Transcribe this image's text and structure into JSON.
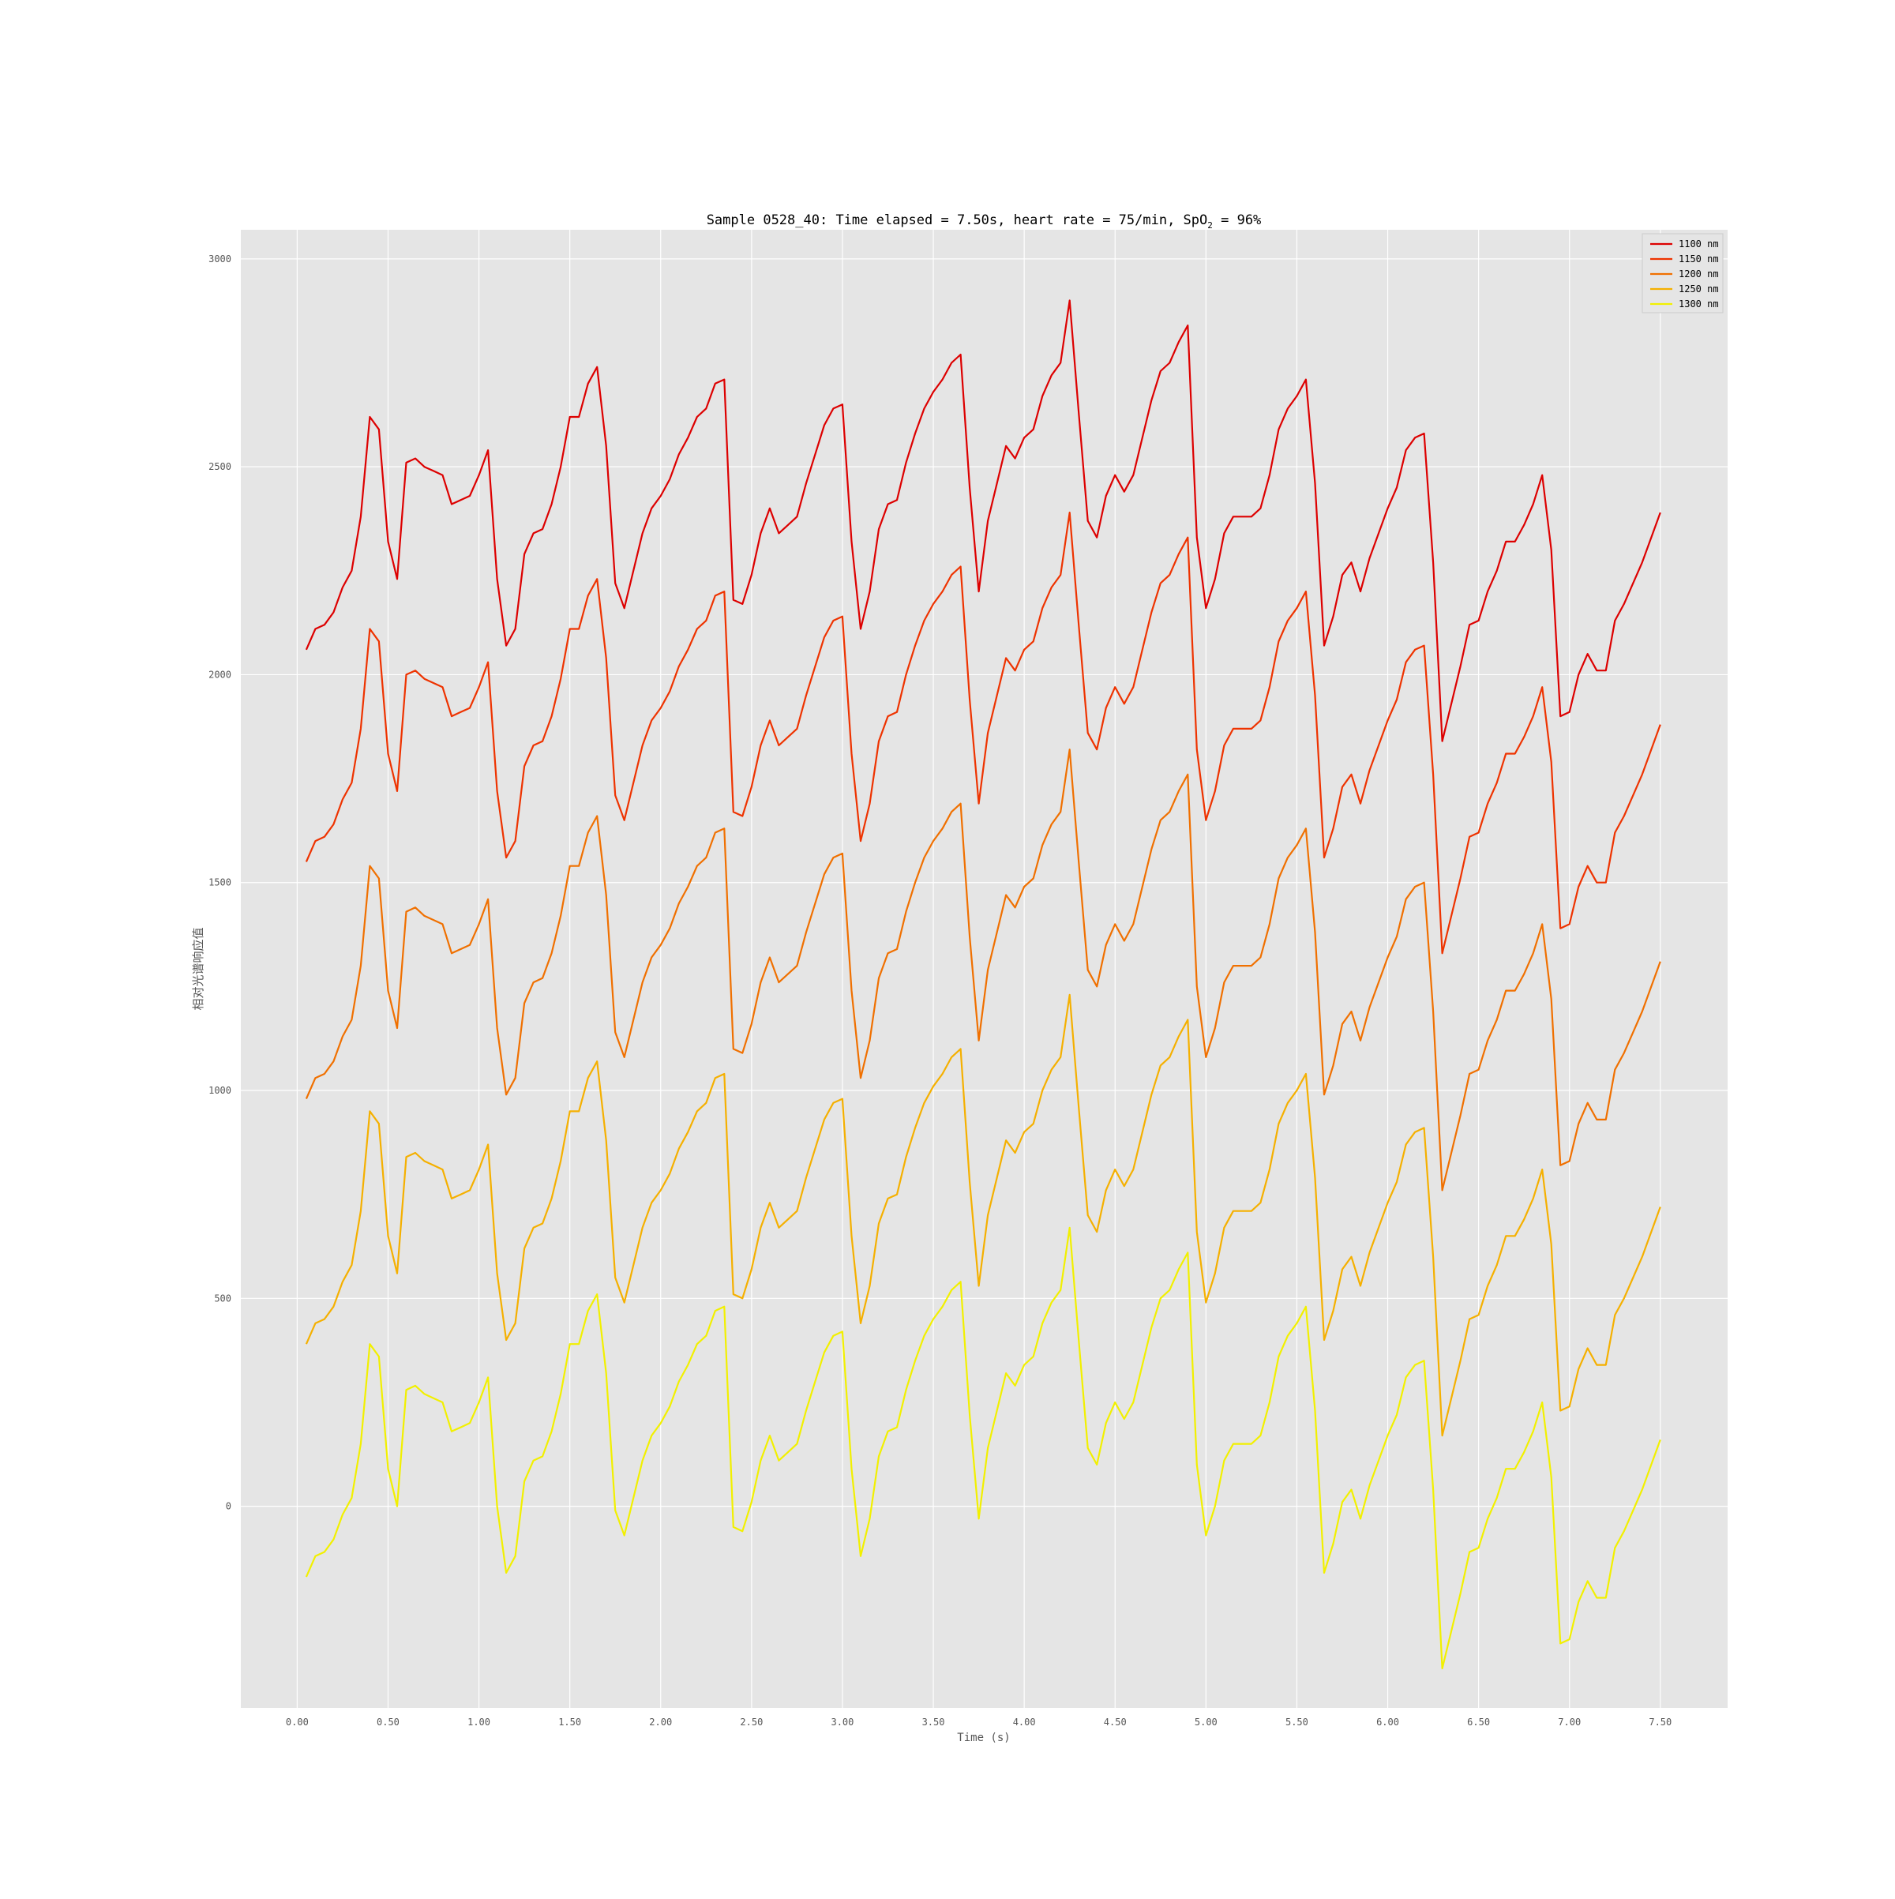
{
  "chart_data": {
    "type": "line",
    "title": "Sample 0528_40: Time elapsed = 7.50s, heart rate = 75/min, SpO",
    "title_subscript": "2",
    "title_suffix": " = 96%",
    "xlabel": "Time (s)",
    "ylabel": "相对光谱响应值",
    "xlim": [
      -0.31,
      7.87
    ],
    "ylim": [
      -485,
      3070
    ],
    "xticks": [
      0,
      0.5,
      1,
      1.5,
      2,
      2.5,
      3,
      3.5,
      4,
      4.5,
      5,
      5.5,
      6,
      6.5,
      7,
      7.5
    ],
    "xtick_labels": [
      "0.00",
      "0.50",
      "1.00",
      "1.50",
      "2.00",
      "2.50",
      "3.00",
      "3.50",
      "4.00",
      "4.50",
      "5.00",
      "5.50",
      "6.00",
      "6.50",
      "7.00",
      "7.50"
    ],
    "yticks": [
      0,
      500,
      1000,
      1500,
      2000,
      2500,
      3000
    ],
    "ytick_labels": [
      "0",
      "500",
      "1000",
      "1500",
      "2000",
      "2500",
      "3000"
    ],
    "grid": true,
    "background": "#e5e5e5",
    "legend_position": "top-right",
    "x": [
      0.05,
      0.1,
      0.15,
      0.2,
      0.25,
      0.3,
      0.35,
      0.4,
      0.45,
      0.5,
      0.55,
      0.6,
      0.65,
      0.7,
      0.75,
      0.8,
      0.85,
      0.9,
      0.95,
      1.0,
      1.05,
      1.1,
      1.15,
      1.2,
      1.25,
      1.3,
      1.35,
      1.4,
      1.45,
      1.5,
      1.55,
      1.6,
      1.65,
      1.7,
      1.75,
      1.8,
      1.85,
      1.9,
      1.95,
      2.0,
      2.05,
      2.1,
      2.15,
      2.2,
      2.25,
      2.3,
      2.35,
      2.4,
      2.45,
      2.5,
      2.55,
      2.6,
      2.65,
      2.7,
      2.75,
      2.8,
      2.85,
      2.9,
      2.95,
      3.0,
      3.05,
      3.1,
      3.15,
      3.2,
      3.25,
      3.3,
      3.35,
      3.4,
      3.45,
      3.5,
      3.55,
      3.6,
      3.65,
      3.7,
      3.75,
      3.8,
      3.85,
      3.9,
      3.95,
      4.0,
      4.05,
      4.1,
      4.15,
      4.2,
      4.25,
      4.3,
      4.35,
      4.4,
      4.45,
      4.5,
      4.55,
      4.6,
      4.65,
      4.7,
      4.75,
      4.8,
      4.85,
      4.9,
      4.95,
      5.0,
      5.05,
      5.1,
      5.15,
      5.2,
      5.25,
      5.3,
      5.35,
      5.4,
      5.45,
      5.5,
      5.55,
      5.6,
      5.65,
      5.7,
      5.75,
      5.8,
      5.85,
      5.9,
      5.95,
      6.0,
      6.05,
      6.1,
      6.15,
      6.2,
      6.25,
      6.3,
      6.35,
      6.4,
      6.45,
      6.5,
      6.55,
      6.6,
      6.65,
      6.7,
      6.75,
      6.8,
      6.85,
      6.9,
      6.95,
      7.0,
      7.05,
      7.1,
      7.15,
      7.2,
      7.25,
      7.3,
      7.35,
      7.4,
      7.45,
      7.5
    ],
    "offsets": [
      0,
      -510,
      -1080,
      -1670,
      -2230
    ],
    "base_values": [
      2060,
      2110,
      2120,
      2150,
      2210,
      2250,
      2380,
      2620,
      2590,
      2320,
      2230,
      2510,
      2520,
      2500,
      2490,
      2480,
      2410,
      2420,
      2430,
      2480,
      2540,
      2230,
      2070,
      2110,
      2290,
      2340,
      2350,
      2410,
      2500,
      2620,
      2620,
      2700,
      2740,
      2550,
      2220,
      2160,
      2250,
      2340,
      2400,
      2430,
      2470,
      2530,
      2570,
      2620,
      2640,
      2700,
      2710,
      2180,
      2170,
      2240,
      2340,
      2400,
      2340,
      2360,
      2380,
      2460,
      2530,
      2600,
      2640,
      2650,
      2320,
      2110,
      2200,
      2350,
      2410,
      2420,
      2510,
      2580,
      2640,
      2680,
      2710,
      2750,
      2770,
      2450,
      2200,
      2370,
      2460,
      2550,
      2520,
      2570,
      2590,
      2670,
      2720,
      2750,
      2900,
      2630,
      2370,
      2330,
      2430,
      2480,
      2440,
      2480,
      2570,
      2660,
      2730,
      2750,
      2800,
      2840,
      2330,
      2160,
      2230,
      2340,
      2380,
      2380,
      2380,
      2400,
      2480,
      2590,
      2640,
      2670,
      2710,
      2460,
      2070,
      2140,
      2240,
      2270,
      2200,
      2280,
      2340,
      2400,
      2450,
      2540,
      2570,
      2580,
      2270,
      1840,
      1930,
      2020,
      2120,
      2130,
      2200,
      2250,
      2320,
      2320,
      2360,
      2410,
      2480,
      2300,
      1900,
      1910,
      2000,
      2050,
      2010,
      2010,
      2130,
      2170,
      2220,
      2270,
      2330,
      2390
    ],
    "series": [
      {
        "name": "1100 nm",
        "color": "#dd0000"
      },
      {
        "name": "1150 nm",
        "color": "#ee3300"
      },
      {
        "name": "1200 nm",
        "color": "#f07000"
      },
      {
        "name": "1250 nm",
        "color": "#f5b000"
      },
      {
        "name": "1300 nm",
        "color": "#f2f000"
      }
    ]
  }
}
